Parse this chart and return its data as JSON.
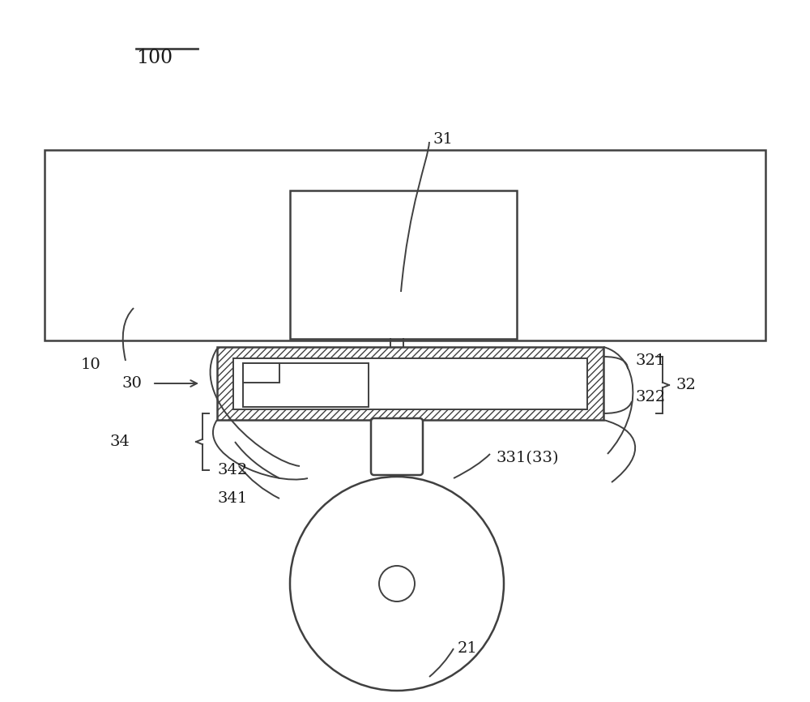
{
  "bg_color": "#ffffff",
  "line_color": "#404040",
  "label_color": "#1a1a1a",
  "label_100": "100",
  "label_10": "10",
  "label_30": "30",
  "label_31": "31",
  "label_32": "32",
  "label_321": "321",
  "label_322": "322",
  "label_33": "331(33)",
  "label_34": "34",
  "label_341": "341",
  "label_342": "342",
  "label_21": "21",
  "figsize": [
    10.0,
    8.66
  ],
  "dpi": 100
}
